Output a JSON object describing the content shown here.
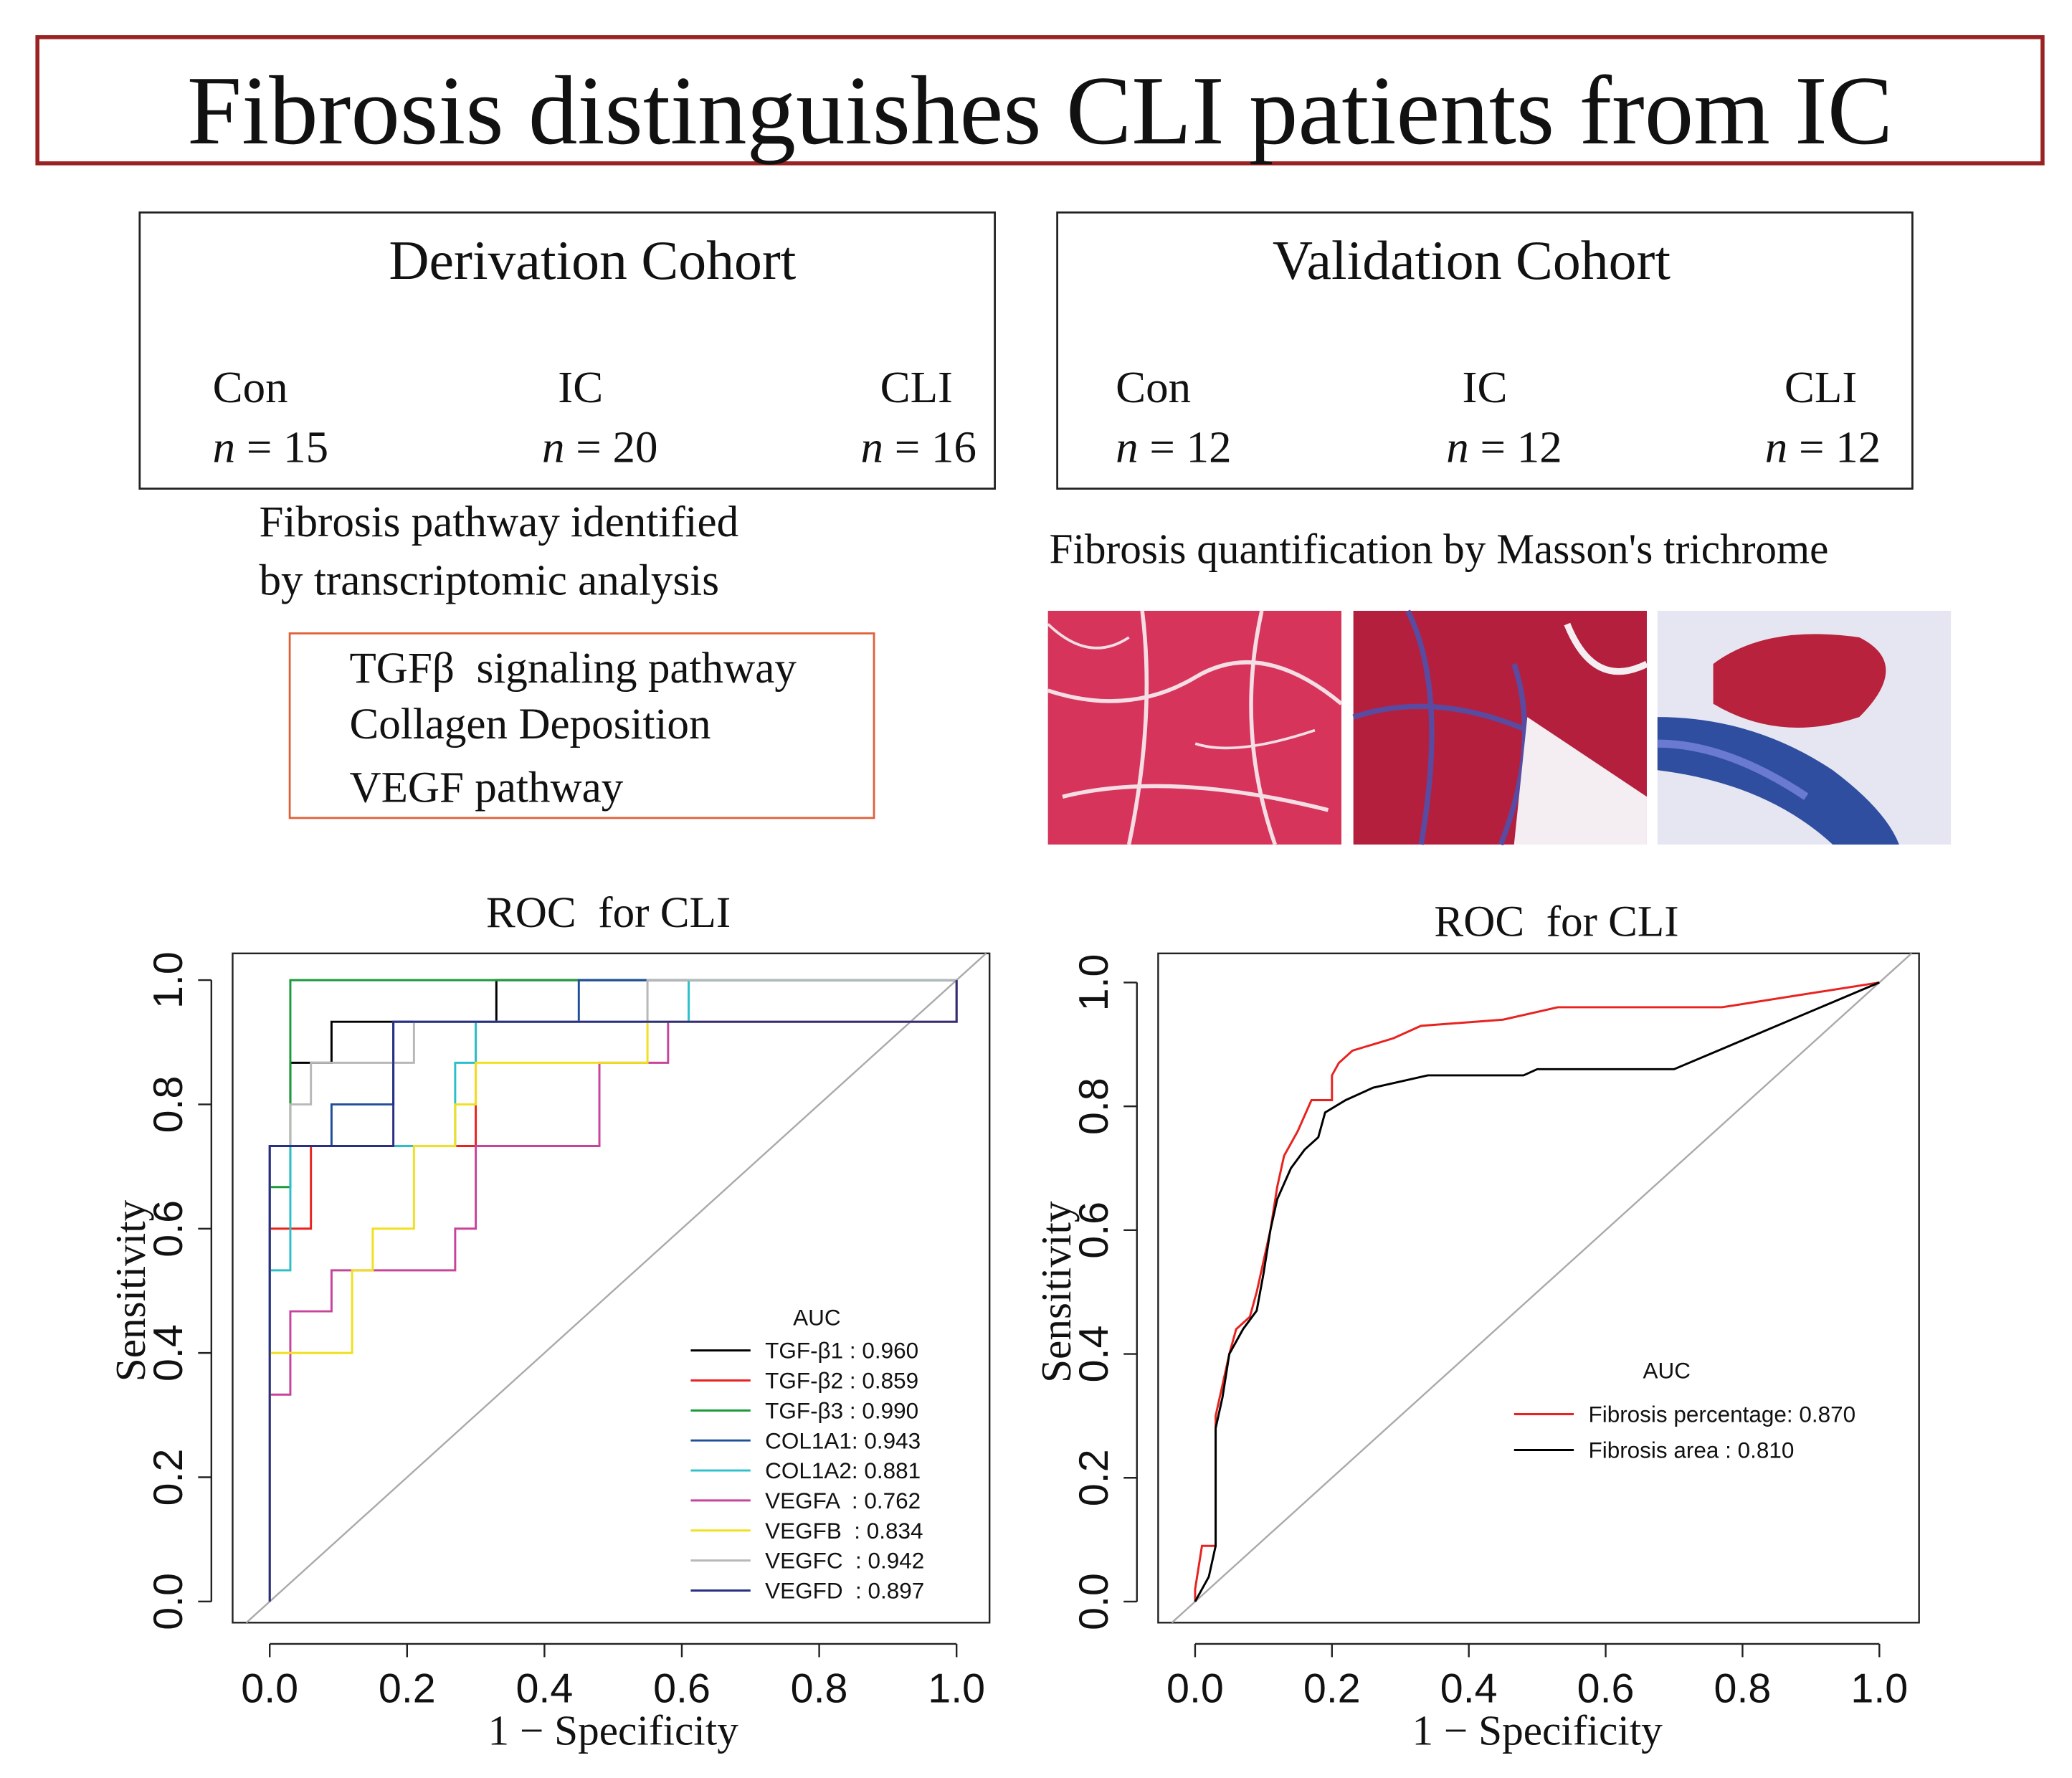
{
  "header": {
    "title": "Fibrosis distinguishes CLI patients from IC"
  },
  "derivation": {
    "title": "Derivation Cohort",
    "groups": [
      {
        "name": "Con",
        "n": "n = 15"
      },
      {
        "name": "IC",
        "n": "n = 20"
      },
      {
        "name": "CLI",
        "n": "n = 16"
      }
    ],
    "note": [
      "Fibrosis pathway identified",
      "by transcriptomic analysis"
    ],
    "pathways": [
      "TGFβ  signaling pathway",
      "Collagen Deposition",
      "VEGF pathway"
    ]
  },
  "validation": {
    "title": "Validation Cohort",
    "groups": [
      {
        "name": "Con",
        "n": "n = 12"
      },
      {
        "name": "IC",
        "n": "n = 12"
      },
      {
        "name": "CLI",
        "n": "n = 12"
      }
    ],
    "note": "Fibrosis quantification by Masson's trichrome"
  },
  "chart_data": [
    {
      "type": "line",
      "title": "ROC  for CLI",
      "x_label": "1 − Specificity",
      "y_label": "Sensitivity",
      "legend_title": "AUC",
      "xlim": [
        -0.054,
        1.048
      ],
      "ylim": [
        -0.034,
        1.043
      ],
      "xticks": [
        {
          "value": 0,
          "label": "0.0"
        },
        {
          "value": 0.2,
          "label": "0.2"
        },
        {
          "value": 0.4,
          "label": "0.4"
        },
        {
          "value": 0.6,
          "label": "0.6"
        },
        {
          "value": 0.8,
          "label": "0.8"
        },
        {
          "value": 1,
          "label": "1.0"
        }
      ],
      "yticks": [
        {
          "value": 0,
          "label": "0.0"
        },
        {
          "value": 0.2,
          "label": "0.2"
        },
        {
          "value": 0.4,
          "label": "0.4"
        },
        {
          "value": 0.6,
          "label": "0.6"
        },
        {
          "value": 0.8,
          "label": "0.8"
        },
        {
          "value": 1,
          "label": "1.0"
        }
      ],
      "series": [
        {
          "name": "TGF-β1 : 0.960",
          "color": "#000000",
          "x": [
            0,
            0,
            0.03,
            0.03,
            0.09,
            0.09,
            0.33,
            0.33,
            1
          ],
          "values": [
            0,
            0.733,
            0.733,
            0.867,
            0.867,
            0.933,
            0.933,
            1,
            1
          ]
        },
        {
          "name": "TGF-β2 : 0.859",
          "color": "#e8231f",
          "x": [
            0,
            0,
            0.06,
            0.06,
            0.3,
            0.3,
            1,
            1
          ],
          "values": [
            0,
            0.6,
            0.6,
            0.733,
            0.733,
            0.933,
            0.933,
            1
          ]
        },
        {
          "name": "TGF-β3 : 0.990",
          "color": "#1c9a3a",
          "x": [
            0,
            0,
            0.03,
            0.03,
            1
          ],
          "values": [
            0,
            0.667,
            0.667,
            1,
            1
          ]
        },
        {
          "name": "COL1A1: 0.943",
          "color": "#1f4e9a",
          "x": [
            0,
            0,
            0.09,
            0.09,
            0.18,
            0.18,
            0.45,
            0.45,
            1
          ],
          "values": [
            0,
            0.733,
            0.733,
            0.8,
            0.8,
            0.933,
            0.933,
            1,
            1
          ]
        },
        {
          "name": "COL1A2: 0.881",
          "color": "#2bbfc9",
          "x": [
            0,
            0,
            0.03,
            0.03,
            0.27,
            0.27,
            0.3,
            0.3,
            0.61,
            0.61,
            1
          ],
          "values": [
            0,
            0.533,
            0.533,
            0.733,
            0.733,
            0.867,
            0.867,
            0.933,
            0.933,
            1,
            1
          ]
        },
        {
          "name": "VEGFA  : 0.762",
          "color": "#c8449a",
          "x": [
            0,
            0,
            0.03,
            0.03,
            0.09,
            0.09,
            0.27,
            0.27,
            0.3,
            0.3,
            0.48,
            0.48,
            0.58,
            0.58,
            1,
            1
          ],
          "values": [
            0,
            0.333,
            0.333,
            0.467,
            0.467,
            0.533,
            0.533,
            0.6,
            0.6,
            0.733,
            0.733,
            0.867,
            0.867,
            0.933,
            0.933,
            1
          ]
        },
        {
          "name": "VEGFB  : 0.834",
          "color": "#f0e020",
          "x": [
            0,
            0,
            0.12,
            0.12,
            0.15,
            0.15,
            0.21,
            0.21,
            0.27,
            0.27,
            0.3,
            0.3,
            0.55,
            0.55,
            1,
            1
          ],
          "values": [
            0,
            0.4,
            0.4,
            0.533,
            0.533,
            0.6,
            0.6,
            0.733,
            0.733,
            0.8,
            0.8,
            0.867,
            0.867,
            0.933,
            0.933,
            1
          ]
        },
        {
          "name": "VEGFC  : 0.942",
          "color": "#b8b8b8",
          "x": [
            0,
            0,
            0.03,
            0.03,
            0.06,
            0.06,
            0.21,
            0.21,
            0.55,
            0.55,
            1
          ],
          "values": [
            0,
            0.733,
            0.733,
            0.8,
            0.8,
            0.867,
            0.867,
            0.933,
            0.933,
            1,
            1
          ]
        },
        {
          "name": "VEGFD  : 0.897",
          "color": "#2a2f86",
          "x": [
            0,
            0,
            0.18,
            0.18,
            1,
            1
          ],
          "values": [
            0,
            0.733,
            0.733,
            0.933,
            0.933,
            1
          ]
        }
      ]
    },
    {
      "type": "line",
      "title": "ROC  for CLI",
      "x_label": "1 − Specificity",
      "y_label": "Sensitivity",
      "legend_title": "AUC",
      "xlim": [
        -0.054,
        1.058
      ],
      "ylim": [
        -0.034,
        1.047
      ],
      "xticks": [
        {
          "value": 0,
          "label": "0.0"
        },
        {
          "value": 0.2,
          "label": "0.2"
        },
        {
          "value": 0.4,
          "label": "0.4"
        },
        {
          "value": 0.6,
          "label": "0.6"
        },
        {
          "value": 0.8,
          "label": "0.8"
        },
        {
          "value": 1,
          "label": "1.0"
        }
      ],
      "yticks": [
        {
          "value": 0,
          "label": "0.0"
        },
        {
          "value": 0.2,
          "label": "0.2"
        },
        {
          "value": 0.4,
          "label": "0.4"
        },
        {
          "value": 0.6,
          "label": "0.6"
        },
        {
          "value": 0.8,
          "label": "0.8"
        },
        {
          "value": 1,
          "label": "1.0"
        }
      ],
      "series": [
        {
          "name": "Fibrosis percentage: 0.870",
          "color": "#e8231f",
          "x": [
            0,
            0,
            0.01,
            0.03,
            0.03,
            0.04,
            0.05,
            0.06,
            0.08,
            0.09,
            0.1,
            0.11,
            0.12,
            0.13,
            0.15,
            0.17,
            0.2,
            0.2,
            0.21,
            0.23,
            0.26,
            0.29,
            0.33,
            0.45,
            0.53,
            0.77,
            1
          ],
          "values": [
            0,
            0.02,
            0.09,
            0.09,
            0.3,
            0.35,
            0.4,
            0.44,
            0.46,
            0.5,
            0.55,
            0.6,
            0.67,
            0.72,
            0.76,
            0.81,
            0.81,
            0.85,
            0.87,
            0.89,
            0.9,
            0.91,
            0.93,
            0.94,
            0.96,
            0.96,
            1
          ]
        },
        {
          "name": "Fibrosis area : 0.810",
          "color": "#000000",
          "x": [
            0,
            0.02,
            0.03,
            0.03,
            0.04,
            0.05,
            0.07,
            0.09,
            0.1,
            0.11,
            0.12,
            0.14,
            0.16,
            0.18,
            0.19,
            0.22,
            0.26,
            0.34,
            0.48,
            0.5,
            0.7,
            1
          ],
          "values": [
            0,
            0.04,
            0.09,
            0.28,
            0.33,
            0.4,
            0.44,
            0.47,
            0.53,
            0.6,
            0.65,
            0.7,
            0.73,
            0.75,
            0.79,
            0.81,
            0.83,
            0.85,
            0.85,
            0.86,
            0.86,
            1
          ]
        }
      ]
    }
  ]
}
